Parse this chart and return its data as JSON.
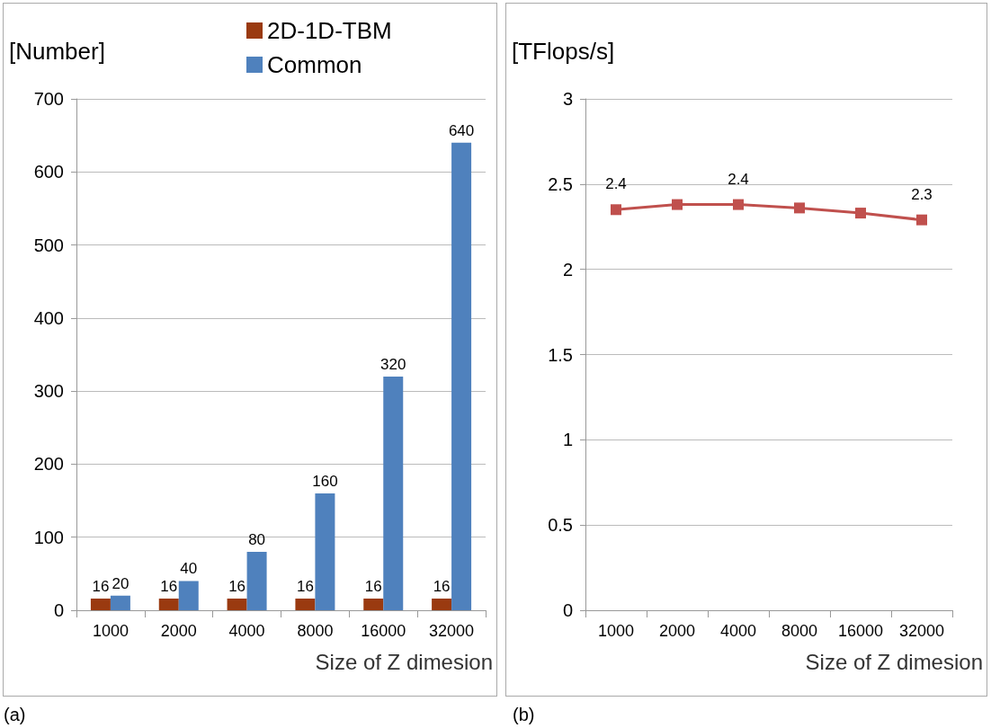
{
  "chart_data": [
    {
      "type": "bar",
      "ylabel": "[Number]",
      "xlabel": "Size of Z dimesion",
      "categories": [
        "1000",
        "2000",
        "4000",
        "8000",
        "16000",
        "32000"
      ],
      "series": [
        {
          "name": "2D-1D-TBM",
          "color": "#9a3a10",
          "values": [
            16,
            16,
            16,
            16,
            16,
            16
          ]
        },
        {
          "name": "Common",
          "color": "#4f81bd",
          "values": [
            20,
            40,
            80,
            160,
            320,
            640
          ]
        }
      ],
      "ylim": [
        0,
        700
      ],
      "yticks": [
        0,
        100,
        200,
        300,
        400,
        500,
        600,
        700
      ],
      "grid": "y",
      "legend": "top",
      "data_labels": true,
      "annotations": [
        "(a)"
      ]
    },
    {
      "type": "line",
      "ylabel": "[TFlops/s]",
      "xlabel": "Size of Z dimesion",
      "categories": [
        "1000",
        "2000",
        "4000",
        "8000",
        "16000",
        "32000"
      ],
      "series": [
        {
          "color": "#c0504d",
          "values": [
            2.35,
            2.38,
            2.38,
            2.36,
            2.33,
            2.29
          ],
          "value_labels": [
            "2.4",
            null,
            "2.4",
            null,
            null,
            "2.3"
          ]
        }
      ],
      "ylim": [
        0,
        3
      ],
      "yticks": [
        0,
        0.5,
        1,
        1.5,
        2,
        2.5,
        3
      ],
      "grid": "y",
      "marker": "square",
      "line_style": "solid",
      "annotations": [
        "(b)"
      ]
    }
  ]
}
